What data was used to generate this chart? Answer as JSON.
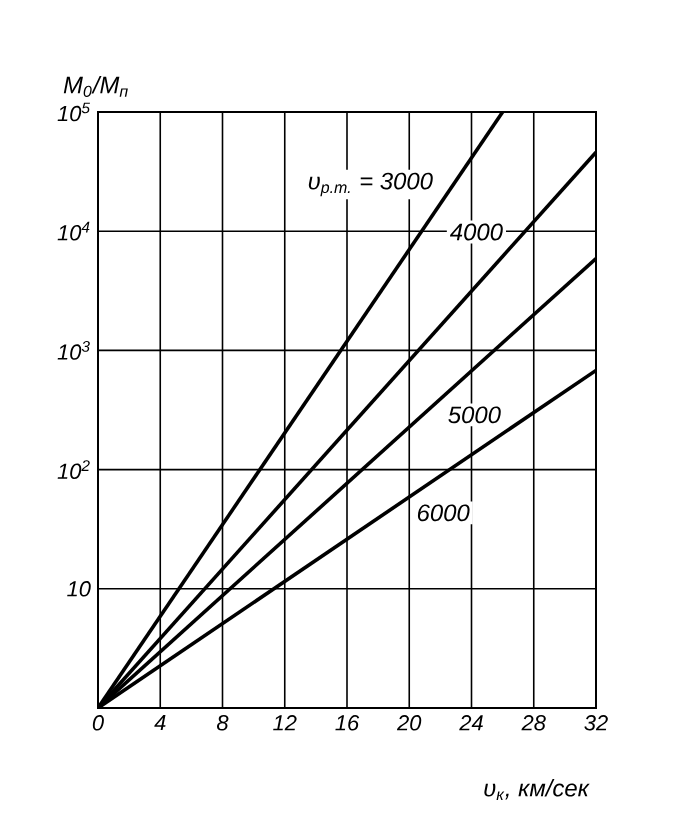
{
  "chart_data": {
    "type": "line",
    "xlabel": "υ$_{к}$, км/сек",
    "ylabel": "M$_{0}$/M$_{п}$",
    "xlim": [
      0,
      32
    ],
    "xticks": [
      0,
      4,
      8,
      12,
      16,
      20,
      24,
      28,
      32
    ],
    "ylim": [
      1,
      100000
    ],
    "log": "y",
    "yticks": [
      {
        "value": 1,
        "label": null
      },
      {
        "value": 10,
        "label": "10"
      },
      {
        "value": 100,
        "label": "10$^{2}$"
      },
      {
        "value": 1000,
        "label": "10$^{3}$"
      },
      {
        "value": 10000,
        "label": "10$^{4}$"
      },
      {
        "value": 100000,
        "label": "10$^{5}$"
      }
    ],
    "grid": true,
    "legend": false,
    "marker": "none",
    "line_style": "solid",
    "series": [
      {
        "name": "υ$_{р.т.}$ = 3000",
        "color": "#000000",
        "x": [
          0,
          26
        ],
        "values": [
          1,
          100000
        ]
      },
      {
        "name": "4000",
        "color": "#000000",
        "x": [
          0,
          32
        ],
        "values": [
          1,
          46000
        ]
      },
      {
        "name": "5000",
        "color": "#000000",
        "x": [
          0,
          32
        ],
        "values": [
          1,
          5900
        ]
      },
      {
        "name": "6000",
        "color": "#000000",
        "x": [
          0,
          32
        ],
        "values": [
          1,
          680
        ]
      }
    ]
  }
}
